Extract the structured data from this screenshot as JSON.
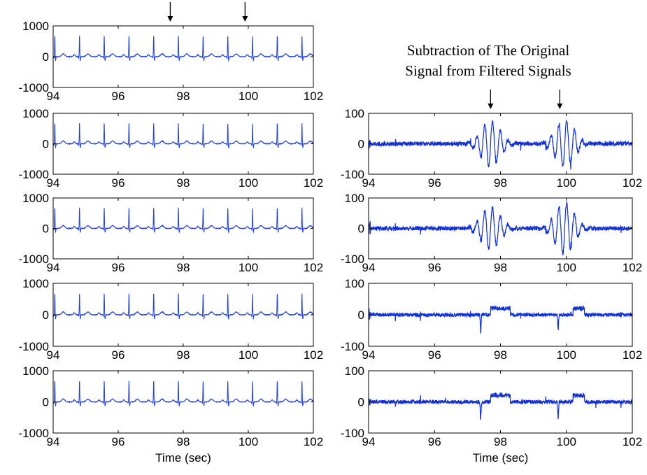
{
  "chart_data": [
    {
      "type": "line",
      "id": "L1",
      "x_range": [
        94,
        102
      ],
      "ylim": [
        -1000,
        1000
      ],
      "x_ticks": [
        "94",
        "96",
        "98",
        "100",
        "102"
      ],
      "y_ticks": [
        "1000",
        "0",
        "-1000"
      ],
      "xlabel": "",
      "line_color": "#1f3fe0",
      "waveform": "ecg",
      "pauses_after_beats": [
        97.6,
        99.9
      ]
    },
    {
      "type": "line",
      "id": "L2",
      "x_range": [
        94,
        102
      ],
      "ylim": [
        -1000,
        1000
      ],
      "x_ticks": [
        "94",
        "96",
        "98",
        "100",
        "102"
      ],
      "y_ticks": [
        "1000",
        "0",
        "-1000"
      ],
      "xlabel": "",
      "line_color": "#1f3fe0",
      "waveform": "ecg",
      "pauses_after_beats": [
        97.6,
        99.9
      ]
    },
    {
      "type": "line",
      "id": "L3",
      "x_range": [
        94,
        102
      ],
      "ylim": [
        -1000,
        1000
      ],
      "x_ticks": [
        "94",
        "96",
        "98",
        "100",
        "102"
      ],
      "y_ticks": [
        "1000",
        "0",
        "-1000"
      ],
      "xlabel": "",
      "line_color": "#1f3fe0",
      "waveform": "ecg",
      "pauses_after_beats": [
        97.6,
        99.9
      ]
    },
    {
      "type": "line",
      "id": "L4",
      "x_range": [
        94,
        102
      ],
      "ylim": [
        -1000,
        1000
      ],
      "x_ticks": [
        "94",
        "96",
        "98",
        "100",
        "102"
      ],
      "y_ticks": [
        "1000",
        "0",
        "-1000"
      ],
      "xlabel": "",
      "line_color": "#1f3fe0",
      "waveform": "ecg",
      "pauses_after_beats": [
        97.6,
        99.9
      ]
    },
    {
      "type": "line",
      "id": "L5",
      "x_range": [
        94,
        102
      ],
      "ylim": [
        -1000,
        1000
      ],
      "x_ticks": [
        "94",
        "96",
        "98",
        "100",
        "102"
      ],
      "y_ticks": [
        "1000",
        "0",
        "-1000"
      ],
      "xlabel": "Time (sec)",
      "line_color": "#1f3fe0",
      "waveform": "ecg",
      "pauses_after_beats": [
        97.6,
        99.9
      ]
    },
    {
      "type": "line",
      "id": "R2",
      "x_range": [
        94,
        102
      ],
      "ylim": [
        -100,
        100
      ],
      "x_ticks": [
        "94",
        "96",
        "98",
        "100",
        "102"
      ],
      "y_ticks": [
        "100",
        "0",
        "-100"
      ],
      "xlabel": "",
      "line_color": "#1030d8",
      "waveform": "bursts",
      "bursts": [
        {
          "center": 97.7,
          "amplitude": 75
        },
        {
          "center": 99.95,
          "amplitude": 78
        }
      ]
    },
    {
      "type": "line",
      "id": "R3",
      "x_range": [
        94,
        102
      ],
      "ylim": [
        -100,
        100
      ],
      "x_ticks": [
        "94",
        "96",
        "98",
        "100",
        "102"
      ],
      "y_ticks": [
        "100",
        "0",
        "-100"
      ],
      "xlabel": "",
      "line_color": "#1030d8",
      "waveform": "bursts",
      "bursts": [
        {
          "center": 97.7,
          "amplitude": 70
        },
        {
          "center": 99.95,
          "amplitude": 85
        }
      ]
    },
    {
      "type": "line",
      "id": "R4",
      "x_range": [
        94,
        102
      ],
      "ylim": [
        -100,
        100
      ],
      "x_ticks": [
        "94",
        "96",
        "98",
        "100",
        "102"
      ],
      "y_ticks": [
        "100",
        "0",
        "-100"
      ],
      "xlabel": "",
      "line_color": "#1030d8",
      "waveform": "steps",
      "spikes": [
        {
          "x": 97.4,
          "y": -55
        },
        {
          "x": 99.75,
          "y": -50
        }
      ],
      "plateaus": [
        {
          "from": 97.7,
          "to": 98.3,
          "y": 25
        },
        {
          "from": 100.2,
          "to": 100.55,
          "y": 25
        }
      ]
    },
    {
      "type": "line",
      "id": "R5",
      "x_range": [
        94,
        102
      ],
      "ylim": [
        -100,
        100
      ],
      "x_ticks": [
        "94",
        "96",
        "98",
        "100",
        "102"
      ],
      "y_ticks": [
        "100",
        "0",
        "-100"
      ],
      "xlabel": "Time (sec)",
      "line_color": "#1030d8",
      "waveform": "steps",
      "spikes": [
        {
          "x": 97.4,
          "y": -55
        },
        {
          "x": 99.75,
          "y": -55
        }
      ],
      "plateaus": [
        {
          "from": 97.7,
          "to": 98.3,
          "y": 25
        },
        {
          "from": 100.2,
          "to": 100.55,
          "y": 25
        }
      ]
    }
  ],
  "annotation": {
    "line1": "Subtraction of The Original",
    "line2": "Signal from Filtered Signals"
  },
  "arrows": {
    "left_top_x": [
      97.6,
      99.9
    ],
    "right_top_x": [
      97.7,
      99.8
    ]
  }
}
